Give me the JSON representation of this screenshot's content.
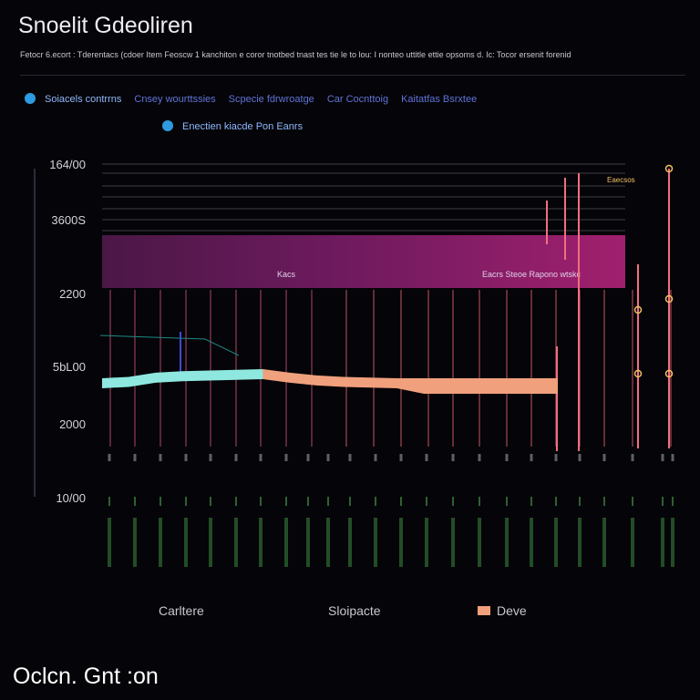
{
  "header": {
    "title": "Snoelit Gdeoliren",
    "subtitle": "Fetocr 6.ecort : Tderentacs (cdoer Item Feoscw 1 kanchiton e coror tnotbed tnast tes tie le to lou: I nonteo uttitle ettie opsoms d. Ic: Tocor ersenit forenid"
  },
  "legend": {
    "row1": [
      {
        "label": "Soiacels contrrns",
        "color": "#2e9be0"
      },
      {
        "label": "Cnsey wourttssies",
        "color": ""
      },
      {
        "label": "Scpecie fdrwroatge",
        "color": ""
      },
      {
        "label": "Car Cocnttoig",
        "color": ""
      },
      {
        "label": "Kaitatfas Bsrxtee",
        "color": ""
      }
    ],
    "row2": [
      {
        "label": "Enectien kiacde Pon Eanrs",
        "color": "#2e9be0"
      }
    ]
  },
  "chart_data": {
    "type": "area",
    "title": "Snoelit Gdeoliren",
    "y_ticks": [
      "164/00",
      "3600S",
      "2200",
      "5bL00",
      "2000",
      "10/00"
    ],
    "band": {
      "color": "#9a1e6e",
      "labels": [
        "Kacs",
        "Eacrs Steoe Rapono wtskc"
      ]
    },
    "annotation": "Eaecsos",
    "series": [
      {
        "name": "",
        "color": "#8ee8e0",
        "x": [
          0,
          1,
          2,
          3,
          4,
          5,
          6
        ],
        "values": [
          6200,
          6300,
          6600,
          6700,
          6750,
          6800,
          6850
        ]
      },
      {
        "name": "",
        "color": "#f0a07c",
        "x": [
          6,
          7,
          8,
          9,
          10,
          11,
          12,
          13,
          14,
          15,
          16,
          17
        ],
        "values": [
          6850,
          6600,
          6400,
          6300,
          6250,
          6200,
          6200,
          6200,
          6200,
          6200,
          6200,
          6200
        ]
      }
    ],
    "xlim": [
      0,
      17
    ]
  },
  "categories_bottom": [
    {
      "label": "Carltere",
      "swatch": false
    },
    {
      "label": "Sloipacte",
      "swatch": false
    },
    {
      "label": "Deve",
      "swatch": true,
      "color": "#f0a07c"
    }
  ],
  "footer": {
    "text": "Oclcn. Gnt :on"
  }
}
